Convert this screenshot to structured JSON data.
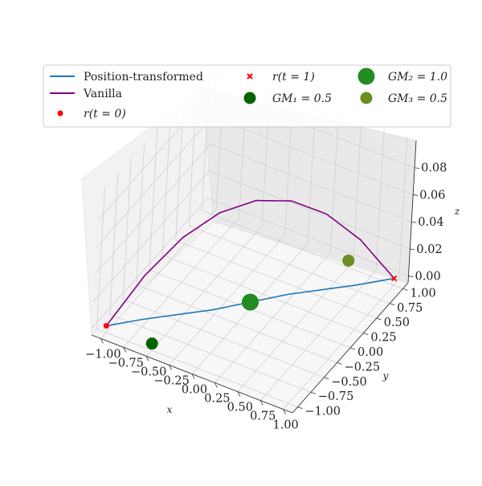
{
  "chart_data": {
    "type": "line-3d",
    "title": "",
    "xlabel": "x",
    "ylabel": "y",
    "zlabel": "z",
    "xlim": [
      -1.1,
      1.1
    ],
    "ylim": [
      -1.1,
      1.1
    ],
    "zlim": [
      -0.005,
      0.1
    ],
    "xticks": [
      "−1.00",
      "−0.75",
      "−0.50",
      "−0.25",
      "0.00",
      "0.25",
      "0.50",
      "0.75",
      "1.00"
    ],
    "yticks": [
      "−1.00",
      "−0.75",
      "−0.50",
      "−0.25",
      "0.00",
      "0.25",
      "0.50",
      "0.75",
      "1.00"
    ],
    "zticks": [
      "0.00",
      "0.02",
      "0.04",
      "0.06",
      "0.08"
    ],
    "grid": true,
    "legend_position": "top",
    "series": [
      {
        "name": "Position-transformed",
        "color": "#1f77b4",
        "kind": "line",
        "x": [
          -1.0,
          -0.75,
          -0.5,
          -0.25,
          0.0,
          0.25,
          0.5,
          0.75,
          1.0
        ],
        "y": [
          -1.0,
          -0.74,
          -0.51,
          -0.28,
          0.0,
          0.28,
          0.51,
          0.74,
          1.0
        ],
        "z": [
          0,
          0,
          0,
          0,
          0,
          0,
          0,
          0,
          0
        ]
      },
      {
        "name": "Vanilla",
        "color": "#800080",
        "kind": "line",
        "x": [
          -1.0,
          -0.75,
          -0.5,
          -0.25,
          0.0,
          0.25,
          0.5,
          0.75,
          1.0
        ],
        "y": [
          -1.0,
          -0.75,
          -0.5,
          -0.25,
          0.0,
          0.25,
          0.5,
          0.75,
          1.0
        ],
        "z": [
          0.0,
          0.0328,
          0.0563,
          0.0703,
          0.075,
          0.0703,
          0.0563,
          0.0328,
          0.0
        ]
      },
      {
        "name": "r(t = 0)",
        "color": "#ff0000",
        "kind": "point",
        "marker": "circle",
        "x": -1.0,
        "y": -1.0,
        "z": 0.0
      },
      {
        "name": "r(t = 1)",
        "color": "#ff0000",
        "kind": "point",
        "marker": "x",
        "x": 1.0,
        "y": 1.0,
        "z": 0.0
      },
      {
        "name": "GM₁ = 0.5",
        "color": "#006400",
        "kind": "point",
        "marker": "circle",
        "x": -0.5,
        "y": -1.0,
        "z": 0.0
      },
      {
        "name": "GM₂ = 1.0",
        "color": "#228b22",
        "kind": "point",
        "marker": "circle",
        "x": 0.0,
        "y": 0.0,
        "z": 0.0
      },
      {
        "name": "GM₃ = 0.5",
        "color": "#6b8e23",
        "kind": "point",
        "marker": "circle",
        "x": 0.5,
        "y": 1.0,
        "z": 0.0
      }
    ]
  },
  "legend": {
    "items": [
      {
        "label": "Position-transformed"
      },
      {
        "label": "Vanilla"
      },
      {
        "label": "r(t = 0)"
      },
      {
        "label": "r(t = 1)"
      },
      {
        "label": "GM₁ = 0.5"
      },
      {
        "label": "GM₂ = 1.0"
      },
      {
        "label": "GM₃ = 0.5"
      }
    ]
  }
}
